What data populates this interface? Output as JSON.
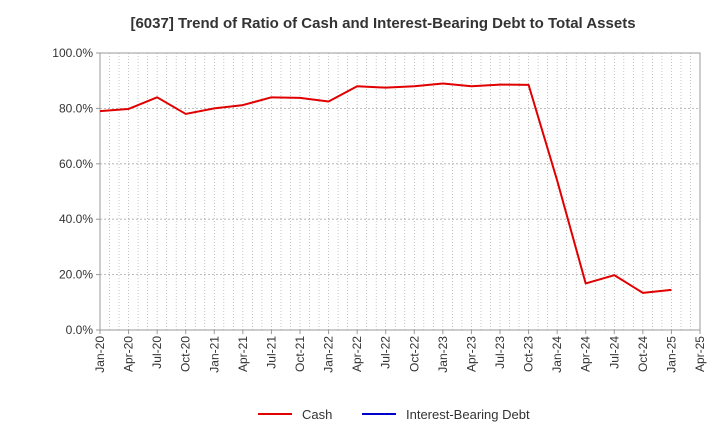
{
  "chart_data": {
    "type": "line",
    "title": "[6037]  Trend of Ratio of Cash and Interest-Bearing Debt to Total Assets",
    "xlabel": "",
    "ylabel": "",
    "ylim": [
      0,
      100
    ],
    "y_ticks": [
      "0.0%",
      "20.0%",
      "40.0%",
      "60.0%",
      "80.0%",
      "100.0%"
    ],
    "x_labels": [
      "Jan-20",
      "Apr-20",
      "Jul-20",
      "Oct-20",
      "Jan-21",
      "Apr-21",
      "Jul-21",
      "Oct-21",
      "Jan-22",
      "Apr-22",
      "Jul-22",
      "Oct-22",
      "Jan-23",
      "Apr-23",
      "Jul-23",
      "Oct-23",
      "Jan-24",
      "Apr-24",
      "Jul-24",
      "Oct-24",
      "Jan-25",
      "Apr-25"
    ],
    "grid": true,
    "legend_position": "bottom",
    "series": [
      {
        "name": "Cash",
        "color": "#e00000",
        "values": [
          79.0,
          79.8,
          84.0,
          78.0,
          80.0,
          81.2,
          84.0,
          83.8,
          82.5,
          88.0,
          87.5,
          88.0,
          89.0,
          88.0,
          88.6,
          88.5,
          54.0,
          16.8,
          19.8,
          13.4,
          14.5,
          null
        ]
      },
      {
        "name": "Interest-Bearing Debt",
        "color": "#0000cc",
        "values": []
      }
    ]
  }
}
